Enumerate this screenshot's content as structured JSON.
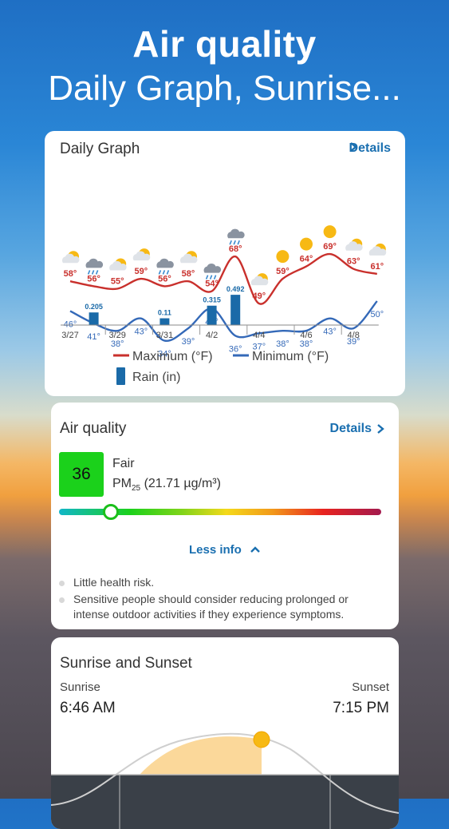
{
  "hero": {
    "title": "Air quality",
    "subtitle": "Daily Graph, Sunrise..."
  },
  "daily_graph": {
    "title": "Daily Graph",
    "details_label": "Details",
    "legend": {
      "max": "Maximum (°F)",
      "min": "Minimum (°F)",
      "rain": "Rain (in)"
    },
    "colors": {
      "max": "#c9302c",
      "min": "#3469b8",
      "rain": "#1a6aa8"
    },
    "chart_data": {
      "type": "line",
      "x": [
        "3/27",
        "3/28",
        "3/29",
        "3/30",
        "3/31",
        "4/1",
        "4/2",
        "4/3",
        "4/4",
        "4/5",
        "4/6",
        "4/7",
        "4/8",
        "4/9"
      ],
      "x_tick_labels": [
        "3/27",
        "3/29",
        "3/31",
        "4/2",
        "4/4",
        "4/6",
        "4/8"
      ],
      "icons": [
        "sun-cloud-icon",
        "rain-cloud-icon",
        "sun-cloud-icon",
        "sun-cloud-icon",
        "rain-cloud-icon",
        "sun-cloud-icon",
        "rain-cloud-icon",
        "rain-cloud-icon",
        "sun-cloud-icon",
        "sun-icon",
        "sun-icon",
        "sun-icon",
        "sun-cloud-icon",
        "sun-cloud-icon"
      ],
      "series": [
        {
          "name": "Maximum (°F)",
          "values": [
            58,
            56,
            55,
            59,
            56,
            58,
            54,
            68,
            49,
            59,
            64,
            69,
            63,
            61
          ]
        },
        {
          "name": "Minimum (°F)",
          "values": [
            46,
            41,
            38,
            43,
            34,
            39,
            47,
            36,
            37,
            38,
            38,
            43,
            39,
            50
          ]
        }
      ],
      "rain": [
        {
          "x": "3/28",
          "value": 0.205
        },
        {
          "x": "3/31",
          "value": 0.11
        },
        {
          "x": "4/2",
          "value": 0.315
        },
        {
          "x": "4/3",
          "value": 0.492
        }
      ]
    }
  },
  "air_quality": {
    "title": "Air quality",
    "details_label": "Details",
    "aqi_value": "36",
    "aqi_level": "Fair",
    "pm_prefix": "PM",
    "pm_sub": "25",
    "pm_value": "(21.71 µg/m³)",
    "scale_position": 0.16,
    "less_info_label": "Less info",
    "bullets": [
      "Little health risk.",
      "Sensitive people should consider reducing prolonged or intense outdoor activities if they experience symptoms."
    ],
    "box_color": "#1bd11b"
  },
  "sun": {
    "title": "Sunrise and Sunset",
    "sunrise_label": "Sunrise",
    "sunrise_time": "6:46 AM",
    "sunset_label": "Sunset",
    "sunset_time": "7:15 PM"
  }
}
